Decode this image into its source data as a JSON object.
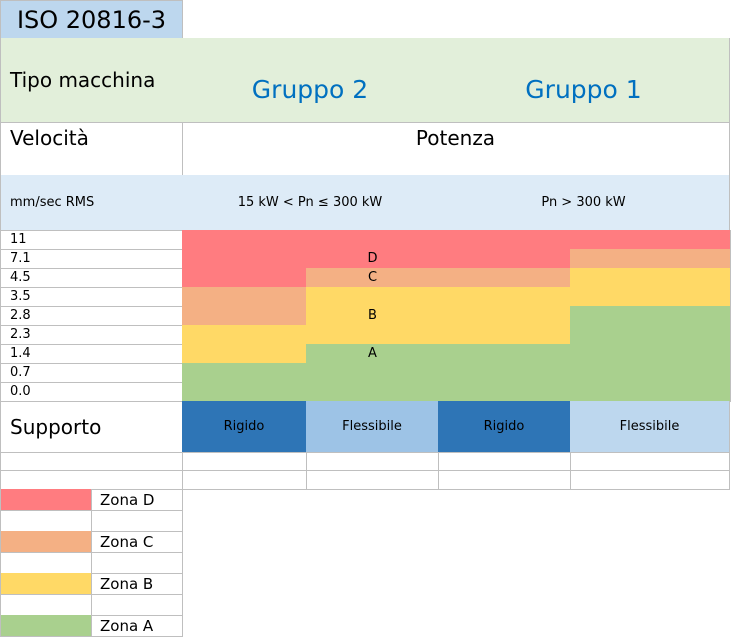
{
  "title": "ISO 20816-3",
  "colors": {
    "zone_d": "#ff7c80",
    "zone_c": "#f4b084",
    "zone_b": "#ffd966",
    "zone_a": "#a9d08e",
    "rigid": "#2e75b6",
    "flex_group2": "#9dc3e6",
    "flex_group1": "#bdd7ee",
    "group_text": "#0070c0"
  },
  "header": {
    "machine_type_label": "Tipo macchina",
    "group2": "Gruppo 2",
    "group1": "Gruppo 1",
    "speed_label": "Velocità",
    "power_label": "Potenza",
    "unit_label": "mm/sec RMS",
    "power_group2": "15 kW < Pn ≤ 300 kW",
    "power_group1": "Pn > 300 kW"
  },
  "velocity_rows": [
    {
      "value": "11",
      "cells": [
        "D",
        "D",
        "D",
        "D"
      ],
      "label": ""
    },
    {
      "value": "7.1",
      "cells": [
        "D",
        "D",
        "D",
        "C"
      ],
      "label": "D"
    },
    {
      "value": "4.5",
      "cells": [
        "D",
        "C",
        "C",
        "B"
      ],
      "label": "C"
    },
    {
      "value": "3.5",
      "cells": [
        "C",
        "B",
        "B",
        "B"
      ],
      "label": ""
    },
    {
      "value": "2.8",
      "cells": [
        "C",
        "B",
        "B",
        "A"
      ],
      "label": "B"
    },
    {
      "value": "2.3",
      "cells": [
        "B",
        "B",
        "B",
        "A"
      ],
      "label": ""
    },
    {
      "value": "1.4",
      "cells": [
        "B",
        "A",
        "A",
        "A"
      ],
      "label": "A"
    },
    {
      "value": "0.7",
      "cells": [
        "A",
        "A",
        "A",
        "A"
      ],
      "label": ""
    },
    {
      "value": "0.0",
      "cells": [
        "A",
        "A",
        "A",
        "A"
      ],
      "label": ""
    }
  ],
  "support": {
    "label": "Supporto",
    "columns": [
      "Rigido",
      "Flessibile",
      "Rigido",
      "Flessibile"
    ]
  },
  "legend": [
    {
      "zone": "D",
      "label": "Zona D"
    },
    {
      "zone": "C",
      "label": "Zona C"
    },
    {
      "zone": "B",
      "label": "Zona B"
    },
    {
      "zone": "A",
      "label": "Zona A"
    }
  ]
}
